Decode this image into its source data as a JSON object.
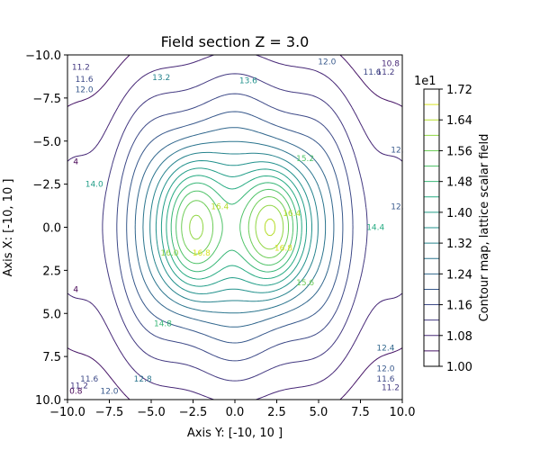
{
  "chart_data": {
    "type": "contour",
    "title": "Field section Z = 3.0",
    "xlabel": "Axis Y: [-10, 10 ]",
    "ylabel": "Axis X: [-10, 10 ]",
    "xlim": [
      -10,
      10
    ],
    "ylim": [
      -10,
      10
    ],
    "y_inverted": true,
    "x_ticks": [
      -10,
      -7.5,
      -5,
      -2.5,
      0,
      2.5,
      5,
      7.5,
      10
    ],
    "y_ticks": [
      -10,
      -7.5,
      -5,
      -2.5,
      0,
      2.5,
      5,
      7.5,
      10
    ],
    "x_tick_labels": [
      "−10.0",
      "−7.5",
      "−5.0",
      "−2.5",
      "0.0",
      "2.5",
      "5.0",
      "7.5",
      "10.0"
    ],
    "y_tick_labels": [
      "−10.0",
      "−7.5",
      "−5.0",
      "−2.5",
      "0.0",
      "2.5",
      "5.0",
      "7.5",
      "10.0"
    ],
    "colormap": "viridis",
    "levels": [
      10.0,
      10.4,
      10.8,
      11.2,
      11.6,
      12.0,
      12.4,
      12.8,
      13.2,
      13.6,
      14.0,
      14.4,
      14.8,
      15.2,
      15.6,
      16.0,
      16.4,
      16.8,
      17.2
    ],
    "peaks": [
      {
        "x": -2.5,
        "y": -1.5,
        "value": 16.9
      },
      {
        "x": -2.5,
        "y": 1.5,
        "value": 16.9
      },
      {
        "x": 2.3,
        "y": -1.2,
        "value": 16.9
      },
      {
        "x": 2.3,
        "y": 1.2,
        "value": 16.9
      }
    ],
    "contour_labels": [
      {
        "text": "11.2",
        "x": -9.2,
        "y": -9.3
      },
      {
        "text": "11.6",
        "x": -9.0,
        "y": -8.6
      },
      {
        "text": "12.0",
        "x": -9.0,
        "y": -8.0
      },
      {
        "text": "13.2",
        "x": -4.4,
        "y": -8.7
      },
      {
        "text": "13.6",
        "x": 0.8,
        "y": -8.5
      },
      {
        "text": "12.0",
        "x": 5.5,
        "y": -9.6
      },
      {
        "text": "11.6",
        "x": 8.2,
        "y": -9.0
      },
      {
        "text": "11.2",
        "x": 9.0,
        "y": -9.0
      },
      {
        "text": "10.8",
        "x": 9.3,
        "y": -9.5
      },
      {
        "text": "12.",
        "x": 9.7,
        "y": -4.5
      },
      {
        "text": "15.2",
        "x": 4.2,
        "y": -4.0
      },
      {
        "text": "14.0",
        "x": -8.4,
        "y": -2.5
      },
      {
        "text": "16.4",
        "x": -0.9,
        "y": -1.2
      },
      {
        "text": "16.4",
        "x": 3.4,
        "y": -0.8
      },
      {
        "text": "14.4",
        "x": 8.4,
        "y": 0.0
      },
      {
        "text": "12.",
        "x": 9.7,
        "y": -1.2
      },
      {
        "text": "16.0",
        "x": -3.9,
        "y": 1.5
      },
      {
        "text": "16.8",
        "x": -2.0,
        "y": 1.5
      },
      {
        "text": "16.8",
        "x": 2.9,
        "y": 1.2
      },
      {
        "text": "15.6",
        "x": 4.2,
        "y": 3.2
      },
      {
        "text": "14.8",
        "x": -4.3,
        "y": 5.6
      },
      {
        "text": "12.4",
        "x": 9.0,
        "y": 7.0
      },
      {
        "text": "12.0",
        "x": 9.0,
        "y": 8.2
      },
      {
        "text": "11.6",
        "x": 9.0,
        "y": 8.8
      },
      {
        "text": "11.2",
        "x": 9.3,
        "y": 9.3
      },
      {
        "text": "12.8",
        "x": -5.5,
        "y": 8.8
      },
      {
        "text": "12.0",
        "x": -7.5,
        "y": 9.5
      },
      {
        "text": "11.6",
        "x": -8.7,
        "y": 8.8
      },
      {
        "text": "11.2",
        "x": -9.3,
        "y": 9.2
      },
      {
        "text": "0.8",
        "x": -9.5,
        "y": 9.5
      },
      {
        "text": "4",
        "x": -9.5,
        "y": -3.8
      },
      {
        "text": "4",
        "x": -9.5,
        "y": 3.6
      }
    ],
    "colorbar": {
      "label": "Contour map, lattice scalar field",
      "multiplier": "1e1",
      "tick_labels": [
        "1.00",
        "1.08",
        "1.16",
        "1.24",
        "1.32",
        "1.40",
        "1.48",
        "1.56",
        "1.64",
        "1.72"
      ],
      "tick_values": [
        1.0,
        1.08,
        1.16,
        1.24,
        1.32,
        1.4,
        1.48,
        1.56,
        1.64,
        1.72
      ],
      "range": [
        1.0,
        1.72
      ]
    }
  }
}
